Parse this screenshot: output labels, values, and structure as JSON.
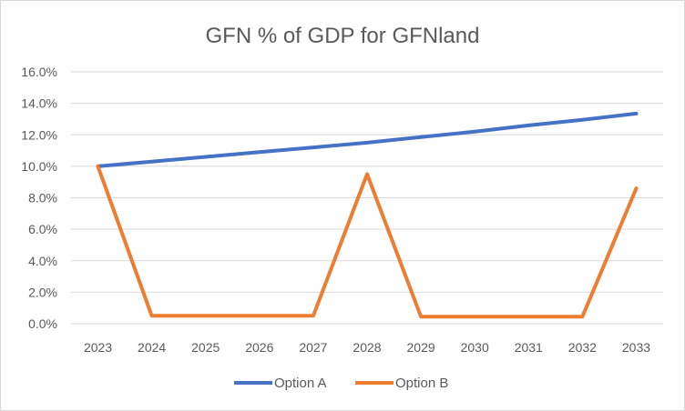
{
  "chart_data": {
    "type": "line",
    "title": "GFN % of GDP for GFNland",
    "xlabel": "",
    "ylabel": "",
    "x": [
      "2023",
      "2024",
      "2025",
      "2026",
      "2027",
      "2028",
      "2029",
      "2030",
      "2031",
      "2032",
      "2033"
    ],
    "ylim": [
      0,
      16
    ],
    "yticks": [
      0,
      2,
      4,
      6,
      8,
      10,
      12,
      14,
      16
    ],
    "ytick_labels": [
      "0.0%",
      "2.0%",
      "4.0%",
      "6.0%",
      "8.0%",
      "10.0%",
      "12.0%",
      "14.0%",
      "16.0%"
    ],
    "grid": true,
    "legend_position": "bottom",
    "series": [
      {
        "name": "Option A",
        "color": "#4472C4",
        "values": [
          10.0,
          10.3,
          10.6,
          10.9,
          11.2,
          11.5,
          11.85,
          12.2,
          12.6,
          12.95,
          13.35
        ]
      },
      {
        "name": "Option B",
        "color": "#ED7D31",
        "values": [
          10.0,
          0.5,
          0.5,
          0.5,
          0.5,
          9.5,
          0.45,
          0.45,
          0.45,
          0.45,
          8.6
        ]
      }
    ]
  }
}
